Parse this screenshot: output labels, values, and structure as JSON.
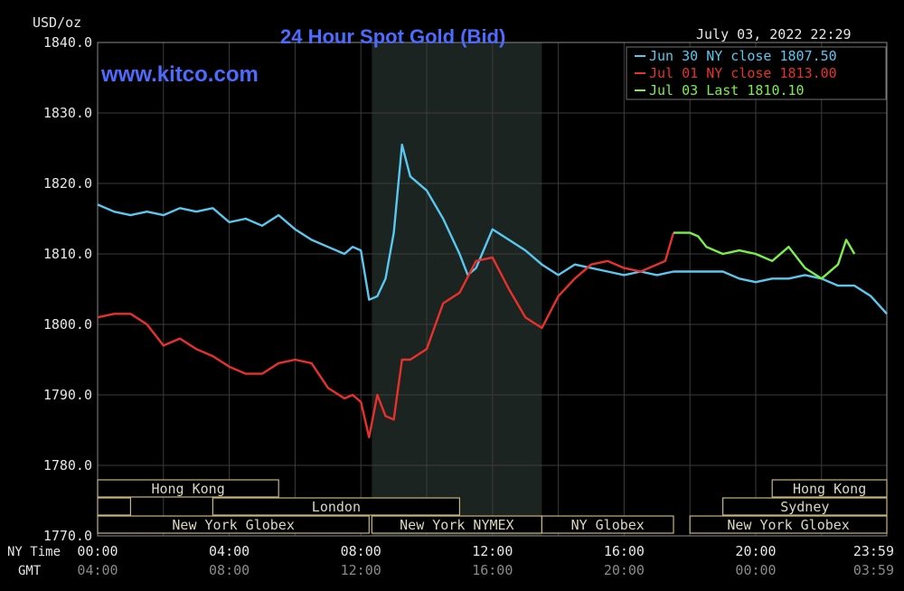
{
  "header": {
    "unit": "USD/oz",
    "title": "24 Hour Spot Gold (Bid)",
    "timestamp": "July 03, 2022 22:29",
    "watermark": "www.kitco.com",
    "title_color": "#4d6bff"
  },
  "axis_labels": {
    "ny_time": "NY Time",
    "gmt": "GMT"
  },
  "sessions": [
    {
      "label": "Hong Kong",
      "x_start": "00:00",
      "x_end": "05:30",
      "row": 0
    },
    {
      "label": "",
      "x_start": "00:00",
      "x_end": "01:00",
      "row": 1
    },
    {
      "label": "London",
      "x_start": "03:30",
      "x_end": "11:00",
      "row": 1
    },
    {
      "label": "New York Globex",
      "x_start": "00:00",
      "x_end": "08:15",
      "row": 2
    },
    {
      "label": "New York NYMEX",
      "x_start": "08:20",
      "x_end": "13:30",
      "row": 2
    },
    {
      "label": "NY Globex",
      "x_start": "13:30",
      "x_end": "17:30",
      "row": 2
    },
    {
      "label": "Hong Kong",
      "x_start": "20:30",
      "x_end": "23:59",
      "row": 0
    },
    {
      "label": "Sydney",
      "x_start": "19:00",
      "x_end": "23:59",
      "row": 1
    },
    {
      "label": "New York Globex",
      "x_start": "18:00",
      "x_end": "23:59",
      "row": 2
    }
  ],
  "chart_data": {
    "type": "line",
    "title": "24 Hour Spot Gold (Bid)",
    "ylabel": "USD/oz",
    "ylim": [
      1770,
      1840
    ],
    "yticks": [
      1840,
      1830,
      1820,
      1810,
      1800,
      1790,
      1780,
      1770
    ],
    "ytick_labels": [
      "1840.0",
      "1830.0",
      "1820.0",
      "1810.0",
      "1800.0",
      "1790.0",
      "1780.0",
      "1770.0"
    ],
    "xlim": [
      "00:00",
      "23:59"
    ],
    "xticks_ny": [
      "00:00",
      "04:00",
      "08:00",
      "12:00",
      "16:00",
      "20:00",
      "23:59"
    ],
    "xticks_gmt": [
      "04:00",
      "08:00",
      "12:00",
      "16:00",
      "20:00",
      "00:00",
      "03:59"
    ],
    "grid": true,
    "highlight_region": [
      "08:20",
      "13:30"
    ],
    "legend_position": "top-right",
    "series": [
      {
        "name": "Jun 30 NY close 1807.50",
        "color": "#58c8f0",
        "x": [
          "00:00",
          "00:30",
          "01:00",
          "01:30",
          "02:00",
          "02:30",
          "03:00",
          "03:30",
          "04:00",
          "04:30",
          "05:00",
          "05:30",
          "06:00",
          "06:30",
          "07:00",
          "07:30",
          "07:45",
          "08:00",
          "08:15",
          "08:30",
          "08:45",
          "09:00",
          "09:15",
          "09:30",
          "10:00",
          "10:30",
          "11:00",
          "11:15",
          "11:30",
          "12:00",
          "12:30",
          "13:00",
          "13:30",
          "14:00",
          "14:30",
          "15:00",
          "15:30",
          "16:00",
          "16:30",
          "17:00",
          "17:30",
          "18:00",
          "18:30",
          "19:00",
          "19:30",
          "20:00",
          "20:30",
          "21:00",
          "21:30",
          "22:00",
          "22:30",
          "23:00",
          "23:30",
          "23:59"
        ],
        "y": [
          1817,
          1816,
          1815.5,
          1816,
          1815.5,
          1816.5,
          1816,
          1816.5,
          1814.5,
          1815,
          1814,
          1815.5,
          1813.5,
          1812,
          1811,
          1810,
          1811,
          1810.5,
          1803.5,
          1804,
          1806.5,
          1813,
          1825.5,
          1821,
          1819,
          1815,
          1810,
          1807,
          1808,
          1813.5,
          1812,
          1810.5,
          1808.5,
          1807,
          1808.5,
          1808,
          1807.5,
          1807,
          1807.5,
          1807,
          1807.5,
          1807.5,
          1807.5,
          1807.5,
          1806.5,
          1806,
          1806.5,
          1806.5,
          1807,
          1806.5,
          1805.5,
          1805.5,
          1804,
          1801.5
        ]
      },
      {
        "name": "Jul 01 NY close 1813.00",
        "color": "#e8312d",
        "x": [
          "00:00",
          "00:30",
          "01:00",
          "01:30",
          "02:00",
          "02:30",
          "03:00",
          "03:30",
          "04:00",
          "04:30",
          "05:00",
          "05:30",
          "06:00",
          "06:30",
          "07:00",
          "07:30",
          "07:45",
          "08:00",
          "08:15",
          "08:30",
          "08:45",
          "09:00",
          "09:15",
          "09:30",
          "10:00",
          "10:30",
          "11:00",
          "11:30",
          "12:00",
          "12:30",
          "13:00",
          "13:30",
          "14:00",
          "14:30",
          "15:00",
          "15:30",
          "16:00",
          "16:30",
          "17:00",
          "17:15",
          "17:30"
        ],
        "y": [
          1801,
          1801.5,
          1801.5,
          1800,
          1797,
          1798,
          1796.5,
          1795.5,
          1794,
          1793,
          1793,
          1794.5,
          1795,
          1794.5,
          1791,
          1789.5,
          1790,
          1789,
          1784,
          1790,
          1787,
          1786.5,
          1795,
          1795,
          1796.5,
          1803,
          1804.5,
          1809,
          1809.5,
          1805,
          1801,
          1799.5,
          1804,
          1806.5,
          1808.5,
          1809,
          1808,
          1807.5,
          1808.5,
          1809,
          1813
        ]
      },
      {
        "name": "Jul 03 Last 1810.10",
        "color": "#7cf04a",
        "x": [
          "17:30",
          "18:00",
          "18:15",
          "18:30",
          "19:00",
          "19:30",
          "20:00",
          "20:30",
          "21:00",
          "21:30",
          "22:00",
          "22:30",
          "22:45",
          "23:00"
        ],
        "y": [
          1813,
          1813,
          1812.5,
          1811,
          1810,
          1810.5,
          1810,
          1809,
          1811,
          1808,
          1806.5,
          1808.5,
          1812,
          1810
        ]
      }
    ]
  }
}
